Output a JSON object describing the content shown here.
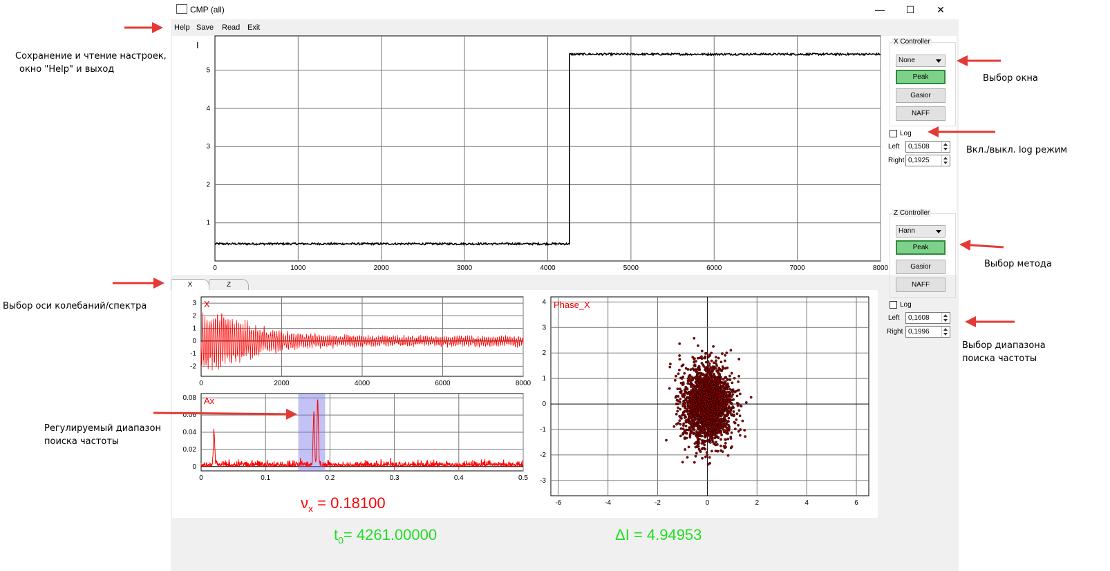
{
  "window": {
    "title": "CMP (all)",
    "minimize": "—",
    "maximize": "☐",
    "close": "✕"
  },
  "menu": {
    "help": "Help",
    "save": "Save",
    "read": "Read",
    "exit": "Exit"
  },
  "top_plot": {
    "x_ticks": [
      "0",
      "1000",
      "2000",
      "3000",
      "4000",
      "5000",
      "6000",
      "7000",
      "8000"
    ],
    "y_ticks": [
      "1",
      "2",
      "3",
      "4",
      "5"
    ],
    "cursor": "I"
  },
  "x_signal_plot": {
    "label": "X",
    "x_ticks": [
      "0",
      "2000",
      "4000",
      "6000",
      "8000"
    ],
    "y_ticks": [
      "3",
      "2",
      "1",
      "0",
      "-1",
      "-2"
    ]
  },
  "spectrum_plot": {
    "label": "Ax",
    "x_ticks": [
      "0",
      "0.1",
      "0.2",
      "0.3",
      "0.4",
      "0.5"
    ],
    "y_ticks": [
      "0.08",
      "0.06",
      "0.04",
      "0.02",
      "0"
    ]
  },
  "phase_plot": {
    "label": "Phase_X",
    "x_ticks": [
      "-6",
      "-4",
      "-2",
      "0",
      "2",
      "4",
      "6"
    ],
    "y_ticks": [
      "4",
      "3",
      "2",
      "1",
      "0",
      "-1",
      "-2",
      "-3"
    ]
  },
  "tabs": [
    {
      "label": "X"
    },
    {
      "label": "Z"
    }
  ],
  "x_controller": {
    "title": "X Controller",
    "window": "None",
    "buttons": [
      "Peak",
      "Gasior",
      "NAFF"
    ],
    "log_label": "Log",
    "left_label": "Left",
    "left_value": "0,1508",
    "right_label": "Right",
    "right_value": "0,1925"
  },
  "z_controller": {
    "title": "Z Controller",
    "window": "Hann",
    "buttons": [
      "Peak",
      "Gasior",
      "NAFF"
    ],
    "log_label": "Log",
    "left_label": "Left",
    "left_value": "0,1608",
    "right_label": "Right",
    "right_value": "0,1996"
  },
  "readouts": {
    "nu_sym": "ν",
    "nu_sub": "x",
    "nu_value": " =  0.18100",
    "t_sym": "t",
    "t_sub": "0",
    "t_value": "= 4261.00000",
    "di": "ΔI =  4.94953"
  },
  "annotations": {
    "menu_line1": "Сохранение и чтение настроек,",
    "menu_line2": "окно \"Help\" и выход",
    "window_select": "Выбор окна",
    "log_toggle": "Вкл./выкл. log режим",
    "axis_select": "Выбор оси колебаний/спектра",
    "method_select": "Выбор метода",
    "range_select_line1": "Выбор диапазона",
    "range_select_line2": "поиска частоты",
    "adjustable_line1": "Регулируемый диапазон",
    "adjustable_line2": "поиска частоты"
  },
  "colors": {
    "signal": "#ff0000",
    "readout_red": "#ff0000",
    "readout_green": "#22dd22",
    "arrow": "#e53935",
    "active_btn": "#7dd18a"
  },
  "chart_data": [
    {
      "type": "line",
      "name": "intensity",
      "xlim": [
        0,
        8000
      ],
      "ylim": [
        0,
        5.9
      ],
      "x": [
        0,
        4261,
        4261,
        8000
      ],
      "values": [
        0.45,
        0.45,
        5.42,
        5.42
      ]
    },
    {
      "type": "line",
      "name": "X signal",
      "xlim": [
        0,
        8000
      ],
      "ylim": [
        -2.8,
        3.5
      ],
      "envelope": {
        "x": [
          0,
          500,
          1000,
          1500,
          2000,
          3000,
          4000,
          6000,
          8000
        ],
        "amplitude": [
          2.6,
          2.3,
          1.8,
          1.1,
          0.8,
          0.55,
          0.45,
          0.4,
          0.4
        ]
      }
    },
    {
      "type": "line",
      "name": "Ax spectrum",
      "xlim": [
        0,
        0.5
      ],
      "ylim": [
        -0.005,
        0.085
      ],
      "peaks": [
        {
          "x": 0.02,
          "y": 0.04
        },
        {
          "x": 0.175,
          "y": 0.062
        },
        {
          "x": 0.181,
          "y": 0.076
        }
      ],
      "noise": 0.003,
      "range": [
        0.1508,
        0.1925
      ]
    },
    {
      "type": "scatter",
      "name": "Phase_X",
      "xlim": [
        -6.3,
        6.5
      ],
      "ylim": [
        -3.6,
        4.2
      ],
      "center": [
        0,
        0
      ],
      "std": [
        0.55,
        0.85
      ],
      "n": 2200
    }
  ]
}
